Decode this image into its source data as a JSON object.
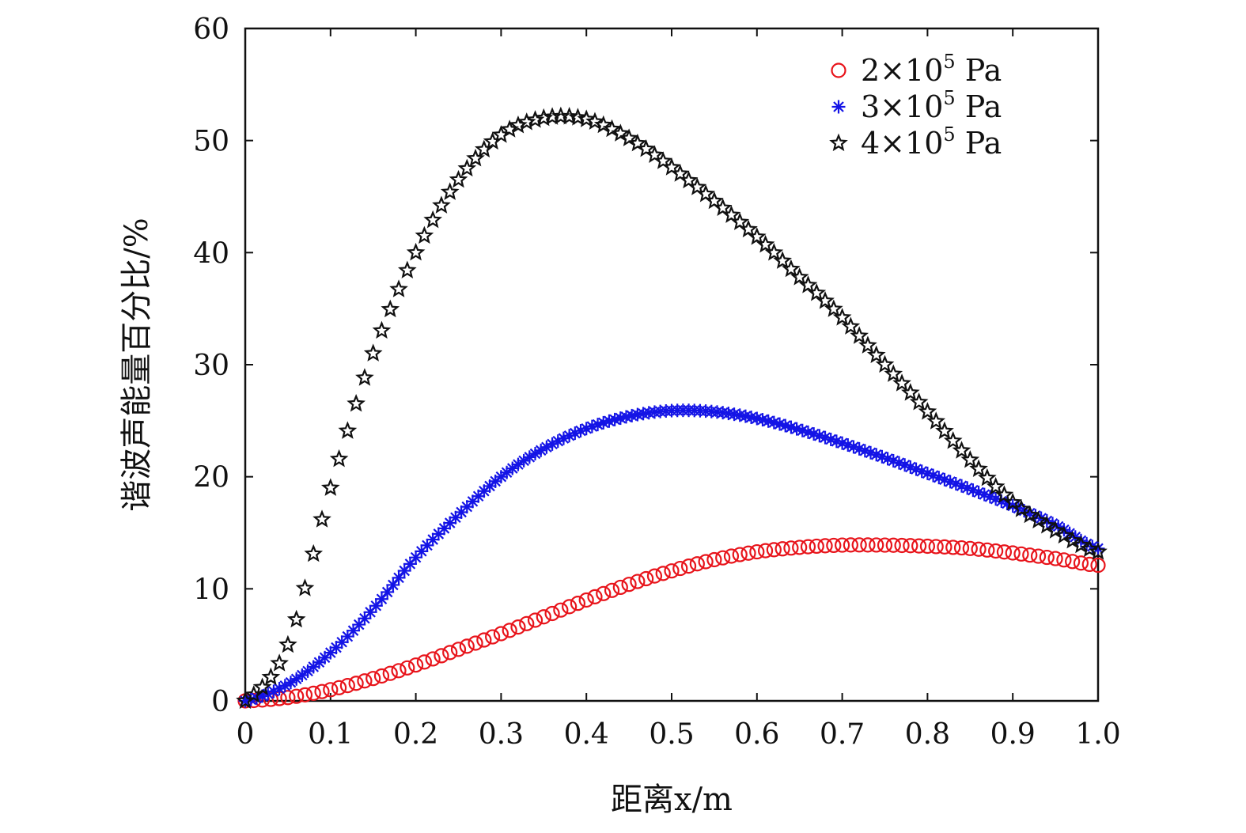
{
  "chart_data": {
    "type": "scatter",
    "title": "",
    "xlabel": "距离x/m",
    "ylabel": "谐波声能量百分比/%",
    "xlim": [
      0,
      1.0
    ],
    "ylim": [
      0,
      60
    ],
    "x_ticks": [
      "0",
      "0.1",
      "0.2",
      "0.3",
      "0.4",
      "0.5",
      "0.6",
      "0.7",
      "0.8",
      "0.9",
      "1.0"
    ],
    "y_ticks": [
      "0",
      "10",
      "20",
      "30",
      "40",
      "50",
      "60"
    ],
    "grid": false,
    "legend_position": "top-right",
    "series": [
      {
        "name": "2×10⁵ Pa",
        "label_main": "2×10",
        "label_sup": "5",
        "label_unit": " Pa",
        "marker": "circle",
        "color": "#e8141b",
        "x": [
          0,
          0.05,
          0.1,
          0.15,
          0.2,
          0.25,
          0.3,
          0.35,
          0.4,
          0.45,
          0.5,
          0.55,
          0.6,
          0.65,
          0.7,
          0.75,
          0.8,
          0.85,
          0.9,
          0.95,
          1.0
        ],
        "y": [
          0,
          0.3,
          1.0,
          2.0,
          3.2,
          4.6,
          6.0,
          7.5,
          9.0,
          10.4,
          11.6,
          12.6,
          13.3,
          13.7,
          13.9,
          13.9,
          13.8,
          13.6,
          13.2,
          12.7,
          12.1
        ]
      },
      {
        "name": "3×10⁵ Pa",
        "label_main": "3×10",
        "label_sup": "5",
        "label_unit": " Pa",
        "marker": "asterisk",
        "color": "#1414e6",
        "x": [
          0,
          0.05,
          0.1,
          0.15,
          0.2,
          0.25,
          0.3,
          0.35,
          0.4,
          0.45,
          0.5,
          0.55,
          0.6,
          0.65,
          0.7,
          0.75,
          0.8,
          0.85,
          0.9,
          0.95,
          1.0
        ],
        "y": [
          0,
          1.5,
          4.3,
          8.2,
          12.8,
          16.6,
          20.0,
          22.5,
          24.3,
          25.4,
          25.9,
          25.8,
          25.2,
          24.2,
          23.0,
          21.7,
          20.3,
          18.9,
          17.4,
          15.7,
          13.6
        ]
      },
      {
        "name": "4×10⁵ Pa",
        "label_main": "4×10",
        "label_sup": "5",
        "label_unit": " Pa",
        "marker": "star",
        "color": "#111111",
        "x": [
          0,
          0.05,
          0.1,
          0.15,
          0.2,
          0.25,
          0.3,
          0.35,
          0.4,
          0.45,
          0.5,
          0.55,
          0.6,
          0.65,
          0.7,
          0.75,
          0.8,
          0.85,
          0.9,
          0.95,
          1.0
        ],
        "y": [
          0,
          5.0,
          19.0,
          31.0,
          40.0,
          46.5,
          50.5,
          52.0,
          51.9,
          50.2,
          47.6,
          44.6,
          41.4,
          37.8,
          34.2,
          30.0,
          25.8,
          21.5,
          17.7,
          15.2,
          13.3
        ]
      }
    ]
  }
}
